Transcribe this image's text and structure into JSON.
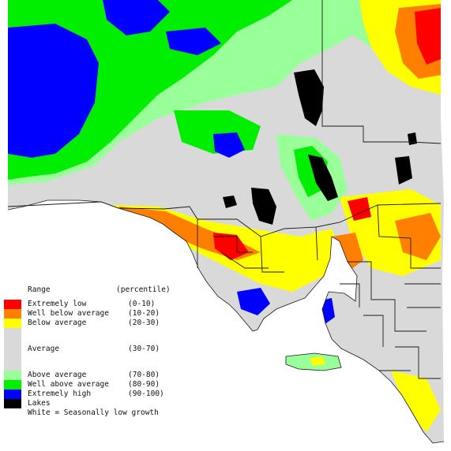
{
  "legend": {
    "title": "Range",
    "unit": "(percentile)",
    "items": [
      {
        "id": "extremely-low",
        "label": "Extremely low",
        "range": "(0-10)",
        "color": "#ff0000"
      },
      {
        "id": "well-below",
        "label": "Well below average",
        "range": "(10-20)",
        "color": "#ff8000"
      },
      {
        "id": "below",
        "label": "Below average",
        "range": "(20-30)",
        "color": "#ffff00"
      },
      {
        "id": "average",
        "label": "Average",
        "range": "(30-70)",
        "color": "#d9d9d9"
      },
      {
        "id": "above",
        "label": "Above average",
        "range": "(70-80)",
        "color": "#99ff99"
      },
      {
        "id": "well-above",
        "label": "Well above average",
        "range": "(80-90)",
        "color": "#00ee00"
      },
      {
        "id": "extremely-high",
        "label": "Extremely high",
        "range": "(90-100)",
        "color": "#0000ff"
      },
      {
        "id": "lakes",
        "label": "Lakes",
        "range": "",
        "color": "#000000"
      }
    ],
    "note": "White = Seasonally low growth"
  },
  "map": {
    "boundary_color": "#1a1a1a",
    "sea_color": "#ffffff"
  }
}
